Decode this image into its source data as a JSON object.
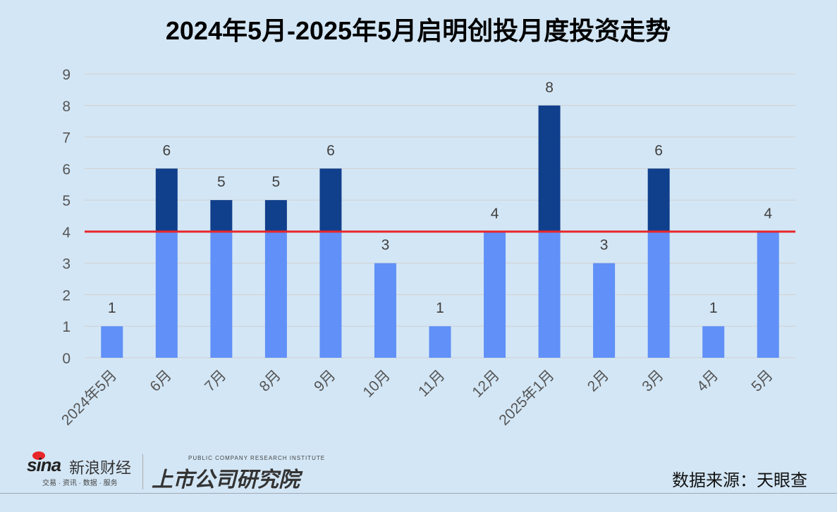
{
  "chart_data": {
    "type": "bar",
    "title": "2024年5月-2025年5月启明创投月度投资走势",
    "categories": [
      "2024年5月",
      "6月",
      "7月",
      "8月",
      "9月",
      "10月",
      "11月",
      "12月",
      "2025年1月",
      "2月",
      "3月",
      "4月",
      "5月"
    ],
    "values": [
      1,
      6,
      5,
      5,
      6,
      3,
      1,
      4,
      8,
      3,
      6,
      1,
      4
    ],
    "ylim": [
      0,
      9
    ],
    "yticks": [
      "0",
      "1",
      "2",
      "3",
      "4",
      "5",
      "6",
      "7",
      "8",
      "9"
    ],
    "reference_line": 4,
    "grid": true,
    "colors": {
      "below_line": "#6090f8",
      "above_line": "#103f8c",
      "reference_line": "#e8262a"
    }
  },
  "footer": {
    "source": "数据来源：天眼查",
    "logo_sina": "sina",
    "logo_sina_cn": "新浪财经",
    "logo_sina_sub": "交易 · 资讯 · 数据 · 服务",
    "logo_institute_en": "PUBLIC COMPANY RESEARCH INSTITUTE",
    "logo_institute_cn": "上市公司研究院"
  }
}
